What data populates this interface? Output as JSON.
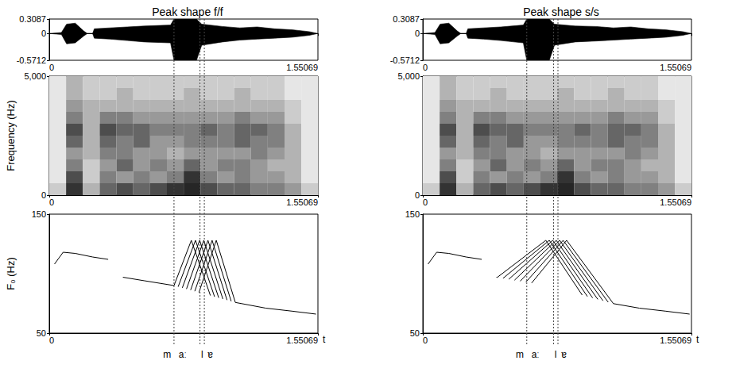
{
  "chart_data": [
    {
      "type": "area",
      "title": "Peak shape f/f",
      "color": "#000000",
      "grid": false,
      "xlim": [
        0,
        1.55069
      ],
      "xticks": [
        0,
        1.55069
      ],
      "ylim": [
        -0.5712,
        0.3087
      ],
      "yticks": [
        -0.5712,
        0,
        0.3087
      ],
      "x": [
        0,
        0.07,
        0.1,
        0.15,
        0.2,
        0.22,
        0.25,
        0.26,
        0.35,
        0.45,
        0.55,
        0.7,
        0.72,
        0.85,
        0.88,
        1.0,
        1.1,
        1.2,
        1.3,
        1.4,
        1.5,
        1.55
      ],
      "series": [
        {
          "values": [
            0,
            0.02,
            0.2,
            0.22,
            0.05,
            0,
            0,
            0.1,
            0.12,
            0.14,
            0.16,
            0.18,
            0.3087,
            0.3087,
            0.2,
            0.15,
            0.12,
            0.14,
            0.1,
            0.08,
            0.04,
            0
          ]
        },
        {
          "values": [
            0,
            -0.02,
            -0.22,
            -0.2,
            -0.05,
            0,
            0,
            -0.1,
            -0.12,
            -0.15,
            -0.18,
            -0.2,
            -0.5712,
            -0.5712,
            -0.25,
            -0.18,
            -0.14,
            -0.12,
            -0.1,
            -0.08,
            -0.04,
            0
          ]
        }
      ]
    },
    {
      "type": "heatmap",
      "y_label": "Frequency (Hz)",
      "color": "#000000",
      "grid": false,
      "xlim": [
        0,
        1.55069
      ],
      "xticks": [
        0,
        1.55069
      ],
      "ylim": [
        0,
        5000
      ],
      "yticks": [
        0,
        {
          "value": 5000,
          "label": "5,000"
        }
      ],
      "time_edges": [
        0,
        0.097,
        0.194,
        0.291,
        0.388,
        0.485,
        0.582,
        0.679,
        0.776,
        0.873,
        0.97,
        1.067,
        1.164,
        1.261,
        1.358,
        1.455,
        1.55069
      ],
      "freq_edges": [
        0,
        500,
        1000,
        1500,
        2000,
        2500,
        3000,
        3500,
        4000,
        4500,
        5000
      ],
      "intensity": [
        [
          0.2,
          0.8,
          0.3,
          0.6,
          0.7,
          0.6,
          0.7,
          0.8,
          0.85,
          0.7,
          0.6,
          0.6,
          0.5,
          0.5,
          0.4,
          0.2
        ],
        [
          0.1,
          0.7,
          0.2,
          0.5,
          0.4,
          0.5,
          0.4,
          0.5,
          0.8,
          0.5,
          0.4,
          0.5,
          0.4,
          0.4,
          0.3,
          0.1
        ],
        [
          0.1,
          0.5,
          0.2,
          0.4,
          0.6,
          0.4,
          0.5,
          0.4,
          0.6,
          0.4,
          0.5,
          0.5,
          0.4,
          0.3,
          0.3,
          0.1
        ],
        [
          0.1,
          0.4,
          0.3,
          0.5,
          0.5,
          0.4,
          0.4,
          0.3,
          0.4,
          0.4,
          0.4,
          0.4,
          0.5,
          0.4,
          0.3,
          0.1
        ],
        [
          0.1,
          0.6,
          0.3,
          0.6,
          0.5,
          0.6,
          0.4,
          0.4,
          0.5,
          0.5,
          0.5,
          0.6,
          0.5,
          0.5,
          0.3,
          0.1
        ],
        [
          0.1,
          0.7,
          0.3,
          0.7,
          0.6,
          0.6,
          0.5,
          0.5,
          0.5,
          0.6,
          0.5,
          0.6,
          0.6,
          0.5,
          0.3,
          0.1
        ],
        [
          0.1,
          0.5,
          0.3,
          0.5,
          0.5,
          0.4,
          0.4,
          0.4,
          0.4,
          0.4,
          0.4,
          0.5,
          0.4,
          0.4,
          0.2,
          0.1
        ],
        [
          0.1,
          0.4,
          0.3,
          0.3,
          0.3,
          0.3,
          0.3,
          0.3,
          0.3,
          0.3,
          0.3,
          0.3,
          0.3,
          0.3,
          0.2,
          0.1
        ],
        [
          0.1,
          0.3,
          0.2,
          0.2,
          0.3,
          0.2,
          0.2,
          0.2,
          0.3,
          0.2,
          0.2,
          0.3,
          0.2,
          0.2,
          0.1,
          0.1
        ],
        [
          0.1,
          0.3,
          0.2,
          0.2,
          0.2,
          0.2,
          0.2,
          0.2,
          0.2,
          0.2,
          0.2,
          0.2,
          0.2,
          0.2,
          0.1,
          0.1
        ]
      ]
    },
    {
      "type": "line",
      "y_label": "F₀ (Hz)",
      "x_label": "t",
      "color": "#000000",
      "grid": false,
      "xlim": [
        0,
        1.55069
      ],
      "xticks": [
        0,
        1.55069
      ],
      "ylim": [
        50,
        150
      ],
      "yticks": [
        50,
        150
      ],
      "boundaries": [
        0.72,
        0.87,
        0.895
      ],
      "annotations": [
        {
          "text": "m",
          "x": 0.68
        },
        {
          "text": "aː",
          "x": 0.77
        },
        {
          "text": "l",
          "x": 0.882
        },
        {
          "text": "ɐ",
          "x": 0.93
        }
      ],
      "series": [
        {
          "values": [
            [
              0.03,
              108
            ],
            [
              0.08,
              118
            ],
            [
              0.15,
              117
            ],
            [
              0.25,
              114
            ],
            [
              0.34,
              112
            ],
            null,
            [
              0.425,
              97
            ],
            [
              0.55,
              94
            ],
            [
              0.72,
              90
            ],
            null,
            [
              1.074,
              75.8
            ],
            [
              1.25,
              71
            ],
            [
              1.4,
              68.5
            ],
            [
              1.54,
              66
            ]
          ]
        },
        {
          "values": [
            [
              0.72,
              90
            ],
            [
              0.82,
              128
            ],
            [
              0.93,
              81.6
            ]
          ]
        },
        {
          "values": [
            [
              0.744,
              89
            ],
            [
              0.844,
              128
            ],
            [
              0.954,
              80.6
            ]
          ]
        },
        {
          "values": [
            [
              0.768,
              88.1
            ],
            [
              0.868,
              128
            ],
            [
              0.978,
              79.7
            ]
          ]
        },
        {
          "values": [
            [
              0.792,
              87.1
            ],
            [
              0.892,
              128
            ],
            [
              1.002,
              78.7
            ]
          ]
        },
        {
          "values": [
            [
              0.816,
              86.2
            ],
            [
              0.916,
              128
            ],
            [
              1.026,
              77.8
            ]
          ]
        },
        {
          "values": [
            [
              0.84,
              85.2
            ],
            [
              0.94,
              128
            ],
            [
              1.05,
              76.8
            ]
          ]
        },
        {
          "values": [
            [
              0.864,
              84.2
            ],
            [
              0.964,
              128
            ],
            [
              1.074,
              75.8
            ]
          ]
        }
      ]
    },
    {
      "type": "area",
      "title": "Peak shape s/s",
      "color": "#000000",
      "grid": false,
      "xlim": [
        0,
        1.55069
      ],
      "xticks": [
        0,
        1.55069
      ],
      "ylim": [
        -0.5712,
        0.3087
      ],
      "yticks": [
        -0.5712,
        0,
        0.3087
      ],
      "x": [
        0,
        0.07,
        0.1,
        0.15,
        0.2,
        0.22,
        0.25,
        0.26,
        0.35,
        0.45,
        0.58,
        0.6,
        0.73,
        0.76,
        0.88,
        1.0,
        1.1,
        1.2,
        1.3,
        1.4,
        1.5,
        1.55
      ],
      "series": [
        {
          "values": [
            0,
            0.02,
            0.2,
            0.22,
            0.05,
            0,
            0,
            0.1,
            0.12,
            0.14,
            0.18,
            0.3087,
            0.3087,
            0.2,
            0.16,
            0.15,
            0.12,
            0.14,
            0.1,
            0.08,
            0.04,
            0
          ]
        },
        {
          "values": [
            0,
            -0.02,
            -0.22,
            -0.2,
            -0.05,
            0,
            0,
            -0.1,
            -0.12,
            -0.15,
            -0.2,
            -0.5712,
            -0.5712,
            -0.25,
            -0.18,
            -0.16,
            -0.14,
            -0.12,
            -0.1,
            -0.08,
            -0.04,
            0
          ]
        }
      ]
    },
    {
      "type": "heatmap",
      "color": "#000000",
      "grid": false,
      "xlim": [
        0,
        1.55069
      ],
      "xticks": [
        0,
        1.55069
      ],
      "ylim": [
        0,
        5000
      ],
      "yticks": [
        0,
        {
          "value": 5000,
          "label": "5,000"
        }
      ],
      "time_edges": [
        0,
        0.097,
        0.194,
        0.291,
        0.388,
        0.485,
        0.582,
        0.679,
        0.776,
        0.873,
        0.97,
        1.067,
        1.164,
        1.261,
        1.358,
        1.455,
        1.55069
      ],
      "freq_edges": [
        0,
        500,
        1000,
        1500,
        2000,
        2500,
        3000,
        3500,
        4000,
        4500,
        5000
      ],
      "intensity": [
        [
          0.2,
          0.8,
          0.3,
          0.6,
          0.7,
          0.6,
          0.7,
          0.8,
          0.85,
          0.7,
          0.6,
          0.6,
          0.5,
          0.5,
          0.4,
          0.2
        ],
        [
          0.1,
          0.7,
          0.2,
          0.5,
          0.4,
          0.5,
          0.4,
          0.5,
          0.8,
          0.5,
          0.4,
          0.5,
          0.4,
          0.4,
          0.3,
          0.1
        ],
        [
          0.1,
          0.5,
          0.2,
          0.4,
          0.6,
          0.4,
          0.5,
          0.4,
          0.6,
          0.4,
          0.5,
          0.5,
          0.4,
          0.3,
          0.3,
          0.1
        ],
        [
          0.1,
          0.4,
          0.3,
          0.5,
          0.5,
          0.4,
          0.4,
          0.3,
          0.4,
          0.4,
          0.4,
          0.4,
          0.5,
          0.4,
          0.3,
          0.1
        ],
        [
          0.1,
          0.6,
          0.3,
          0.6,
          0.5,
          0.6,
          0.4,
          0.4,
          0.5,
          0.5,
          0.5,
          0.6,
          0.5,
          0.5,
          0.3,
          0.1
        ],
        [
          0.1,
          0.7,
          0.3,
          0.7,
          0.6,
          0.6,
          0.5,
          0.5,
          0.5,
          0.6,
          0.5,
          0.6,
          0.6,
          0.5,
          0.3,
          0.1
        ],
        [
          0.1,
          0.5,
          0.3,
          0.5,
          0.5,
          0.4,
          0.4,
          0.4,
          0.4,
          0.4,
          0.4,
          0.5,
          0.4,
          0.4,
          0.2,
          0.1
        ],
        [
          0.1,
          0.4,
          0.3,
          0.3,
          0.3,
          0.3,
          0.3,
          0.3,
          0.3,
          0.3,
          0.3,
          0.3,
          0.3,
          0.3,
          0.2,
          0.1
        ],
        [
          0.1,
          0.3,
          0.2,
          0.2,
          0.3,
          0.2,
          0.2,
          0.2,
          0.3,
          0.2,
          0.2,
          0.3,
          0.2,
          0.2,
          0.1,
          0.1
        ],
        [
          0.1,
          0.3,
          0.2,
          0.2,
          0.2,
          0.2,
          0.2,
          0.2,
          0.2,
          0.2,
          0.2,
          0.2,
          0.2,
          0.2,
          0.1,
          0.1
        ]
      ]
    },
    {
      "type": "line",
      "x_label": "t",
      "color": "#000000",
      "grid": false,
      "xlim": [
        0,
        1.55069
      ],
      "xticks": [
        0,
        1.55069
      ],
      "ylim": [
        50,
        150
      ],
      "yticks": [
        50,
        150
      ],
      "boundaries": [
        0.6,
        0.755,
        0.78
      ],
      "annotations": [
        {
          "text": "m",
          "x": 0.56
        },
        {
          "text": "aː",
          "x": 0.65
        },
        {
          "text": "l",
          "x": 0.767
        },
        {
          "text": "ɐ",
          "x": 0.815
        }
      ],
      "series": [
        {
          "values": [
            [
              0.03,
              108
            ],
            [
              0.08,
              118
            ],
            [
              0.15,
              117
            ],
            [
              0.25,
              114
            ],
            [
              0.34,
              112
            ],
            null,
            [
              0.425,
              97
            ],
            [
              0.43,
              96.9
            ],
            null,
            [
              1.1,
              74.8
            ],
            [
              1.25,
              71
            ],
            [
              1.4,
              68.5
            ],
            [
              1.54,
              66
            ]
          ]
        },
        {
          "values": [
            [
              0.43,
              96.9
            ],
            [
              0.71,
              128
            ],
            [
              0.92,
              82
            ]
          ]
        },
        {
          "values": [
            [
              0.463,
              96.1
            ],
            [
              0.73,
              128
            ],
            [
              0.95,
              80.8
            ]
          ]
        },
        {
          "values": [
            [
              0.496,
              95.3
            ],
            [
              0.75,
              128
            ],
            [
              0.98,
              79.6
            ]
          ]
        },
        {
          "values": [
            [
              0.529,
              94.5
            ],
            [
              0.77,
              128
            ],
            [
              1.01,
              78.4
            ]
          ]
        },
        {
          "values": [
            [
              0.562,
              93.7
            ],
            [
              0.79,
              128
            ],
            [
              1.04,
              77.2
            ]
          ]
        },
        {
          "values": [
            [
              0.595,
              92.9
            ],
            [
              0.81,
              128
            ],
            [
              1.07,
              76
            ]
          ]
        },
        {
          "values": [
            [
              0.628,
              92.1
            ],
            [
              0.83,
              128
            ],
            [
              1.1,
              74.8
            ]
          ]
        }
      ]
    }
  ]
}
